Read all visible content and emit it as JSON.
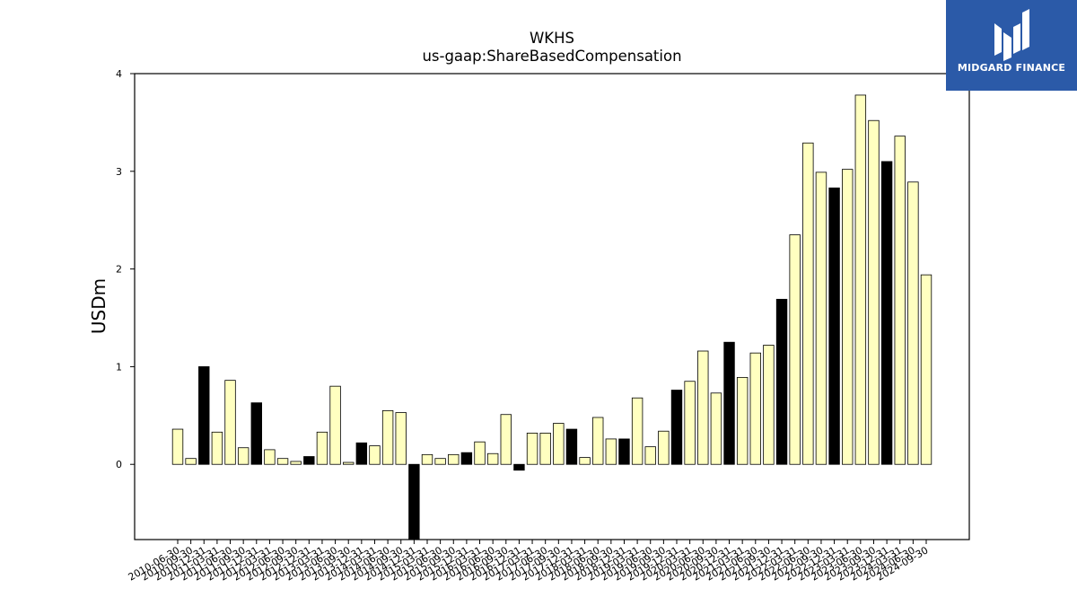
{
  "brand": {
    "name": "MIDGARD FINANCE",
    "logo_icon": "midgard-logo-icon",
    "background_color": "#2b5aa8"
  },
  "chart_data": {
    "type": "bar",
    "title": "WKHS",
    "subtitle": "us-gaap:ShareBasedCompensation",
    "xlabel": "",
    "ylabel": "USDm",
    "ylim": [
      -0.77,
      4.0
    ],
    "yticks": [
      0,
      1,
      2,
      3,
      4
    ],
    "grid": false,
    "legend": "none",
    "colors": {
      "quarterly": "#ffffc0",
      "annual": "#000000",
      "edge": "#000000"
    },
    "categories": [
      "2010-06-30",
      "2010-09-30",
      "2010-12-31",
      "2011-03-31",
      "2011-06-30",
      "2011-09-30",
      "2011-12-31",
      "2012-03-31",
      "2012-06-30",
      "2012-09-30",
      "2012-12-31",
      "2013-03-31",
      "2013-06-30",
      "2013-09-30",
      "2013-12-31",
      "2014-03-31",
      "2014-06-30",
      "2014-09-30",
      "2014-12-31",
      "2015-03-31",
      "2015-06-30",
      "2015-09-30",
      "2015-12-31",
      "2016-03-31",
      "2016-06-30",
      "2016-09-30",
      "2016-12-31",
      "2017-03-31",
      "2017-06-30",
      "2017-09-30",
      "2017-12-31",
      "2018-03-31",
      "2018-06-30",
      "2018-09-30",
      "2018-12-31",
      "2019-03-31",
      "2019-06-30",
      "2019-09-30",
      "2019-12-31",
      "2020-03-31",
      "2020-06-30",
      "2020-09-30",
      "2020-12-31",
      "2021-03-31",
      "2021-06-30",
      "2021-09-30",
      "2021-12-31",
      "2022-03-31",
      "2022-06-30",
      "2022-09-30",
      "2022-12-31",
      "2023-03-31",
      "2023-06-30",
      "2023-09-30",
      "2023-12-31",
      "2024-03-31",
      "2024-06-30",
      "2024-09-30"
    ],
    "values": [
      0.36,
      0.06,
      1.0,
      0.33,
      0.86,
      0.17,
      0.63,
      0.15,
      0.06,
      0.03,
      0.08,
      0.33,
      0.8,
      0.02,
      0.22,
      0.19,
      0.55,
      0.53,
      -0.77,
      0.1,
      0.06,
      0.1,
      0.12,
      0.23,
      0.11,
      0.51,
      -0.06,
      0.32,
      0.32,
      0.42,
      0.36,
      0.07,
      0.48,
      0.26,
      0.26,
      0.68,
      0.18,
      0.34,
      0.76,
      0.85,
      1.16,
      0.73,
      1.25,
      0.89,
      1.14,
      1.22,
      1.69,
      2.35,
      3.29,
      2.99,
      2.83,
      3.02,
      3.78,
      3.52,
      3.1,
      3.36,
      2.89,
      1.94
    ],
    "annual": [
      false,
      false,
      true,
      false,
      false,
      false,
      true,
      false,
      false,
      false,
      true,
      false,
      false,
      false,
      true,
      false,
      false,
      false,
      true,
      false,
      false,
      false,
      true,
      false,
      false,
      false,
      true,
      false,
      false,
      false,
      true,
      false,
      false,
      false,
      true,
      false,
      false,
      false,
      true,
      false,
      false,
      false,
      true,
      false,
      false,
      false,
      true,
      false,
      false,
      false,
      true,
      false,
      false,
      false,
      true,
      false,
      false,
      false
    ]
  }
}
